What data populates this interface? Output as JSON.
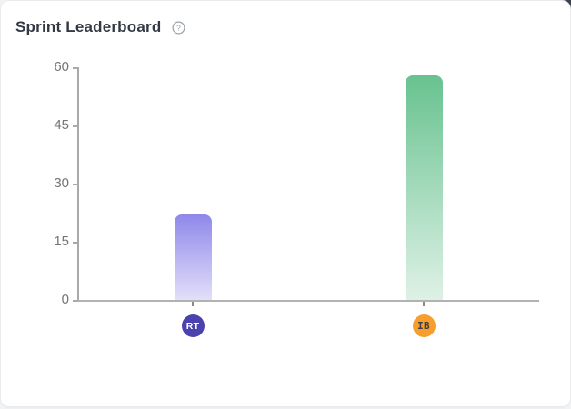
{
  "card": {
    "title": "Sprint Leaderboard"
  },
  "icons": {
    "help": "?"
  },
  "chart_data": {
    "type": "bar",
    "title": "Sprint Leaderboard",
    "categories": [
      "RT",
      "IB"
    ],
    "values": [
      22,
      58
    ],
    "xlabel": "",
    "ylabel": "",
    "ylim": [
      0,
      60
    ],
    "yticks": [
      0,
      15,
      30,
      45,
      60
    ],
    "grid": false,
    "legend": "none",
    "bars": [
      {
        "label": "RT",
        "value": 22,
        "bar_gradient_top": "#8f88e9",
        "bar_gradient_bottom": "#e2dffa",
        "avatar_bg": "#4c42ad",
        "avatar_text": "#ffffff"
      },
      {
        "label": "IB",
        "value": 58,
        "bar_gradient_top": "#68c28f",
        "bar_gradient_bottom": "#def1e6",
        "avatar_bg": "#f89e2c",
        "avatar_text": "#3b4048"
      }
    ],
    "colors": {
      "axis_line": "#b2b2b2",
      "tick_label": "#757575"
    }
  }
}
